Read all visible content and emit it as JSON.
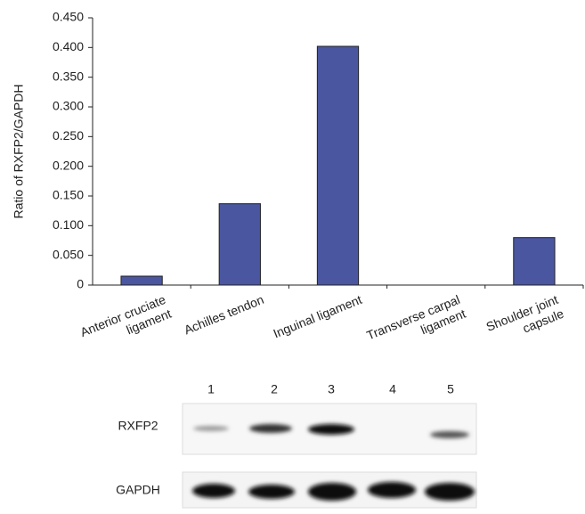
{
  "chart_data": {
    "type": "bar",
    "ylabel": "Ratio of RXFP2/GAPDH",
    "categories": [
      [
        "Anterior cruciate",
        "ligament"
      ],
      [
        "Achilles tendon"
      ],
      [
        "Inguinal ligament"
      ],
      [
        "Transverse carpal",
        "ligament"
      ],
      [
        "Shoulder joint",
        "capsule"
      ]
    ],
    "values": [
      0.015,
      0.137,
      0.402,
      0,
      0.08
    ],
    "color": "#4a56a0",
    "ylim": [
      0,
      0.45
    ],
    "yticks": [
      0,
      {
        "value": 0.05,
        "label": "0.050"
      },
      {
        "value": 0.1,
        "label": "0.100"
      },
      {
        "value": 0.15,
        "label": "0.150"
      },
      {
        "value": 0.2,
        "label": "0.200"
      },
      {
        "value": 0.25,
        "label": "0.250"
      },
      {
        "value": 0.3,
        "label": "0.300"
      },
      {
        "value": 0.35,
        "label": "0.350"
      },
      {
        "value": 0.4,
        "label": "0.400"
      },
      {
        "value": 0.45,
        "label": "0.450"
      }
    ],
    "grid": false
  },
  "blot": {
    "lanes": [
      "1",
      "2",
      "3",
      "4",
      "5"
    ],
    "rows": [
      "RXFP2",
      "GAPDH"
    ]
  }
}
